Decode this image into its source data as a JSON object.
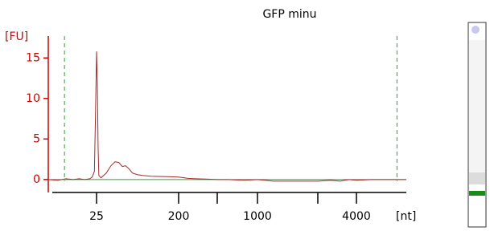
{
  "chart_data": {
    "type": "line",
    "title": "GFP minu",
    "y_label": "[FU]",
    "x_label": "[nt]",
    "x": [
      10,
      12,
      14,
      16,
      18,
      20,
      22,
      23,
      24,
      24.5,
      25,
      25.5,
      26,
      26.5,
      28,
      32,
      36,
      40,
      44,
      48,
      52,
      56,
      62,
      70,
      80,
      100,
      150,
      200,
      250,
      300,
      400,
      500,
      600,
      800,
      1000,
      1200,
      1500,
      2000,
      2500,
      3000,
      3500,
      4000,
      4500,
      5000,
      6000
    ],
    "series": [
      {
        "name": "GFP minu",
        "color": "#a52a2a",
        "values": [
          0,
          -0.1,
          0.1,
          0,
          0.1,
          0,
          0.1,
          0.3,
          1,
          8,
          15.8,
          12,
          4,
          0.5,
          0.2,
          0.8,
          1.7,
          2.2,
          2.1,
          1.6,
          1.7,
          1.4,
          0.8,
          0.6,
          0.5,
          0.4,
          0.35,
          0.3,
          0.15,
          0.1,
          0.05,
          0,
          0,
          -0.1,
          0,
          -0.2,
          -0.2,
          -0.2,
          -0.1,
          -0.2,
          0,
          -0.1,
          0,
          0,
          0
        ]
      }
    ],
    "xlim": [
      10,
      6000
    ],
    "xticks": [
      25,
      200,
      1000,
      4000
    ],
    "xminor": [
      500,
      2000
    ],
    "ylim": [
      -1.6,
      17.7
    ],
    "yticks": [
      0,
      5,
      10,
      15
    ],
    "markers": [
      13.6,
      5560
    ],
    "marker_color": "#3a9a3a",
    "baseline_color": "#3a9a3a",
    "axis_color": "#cc0000"
  }
}
